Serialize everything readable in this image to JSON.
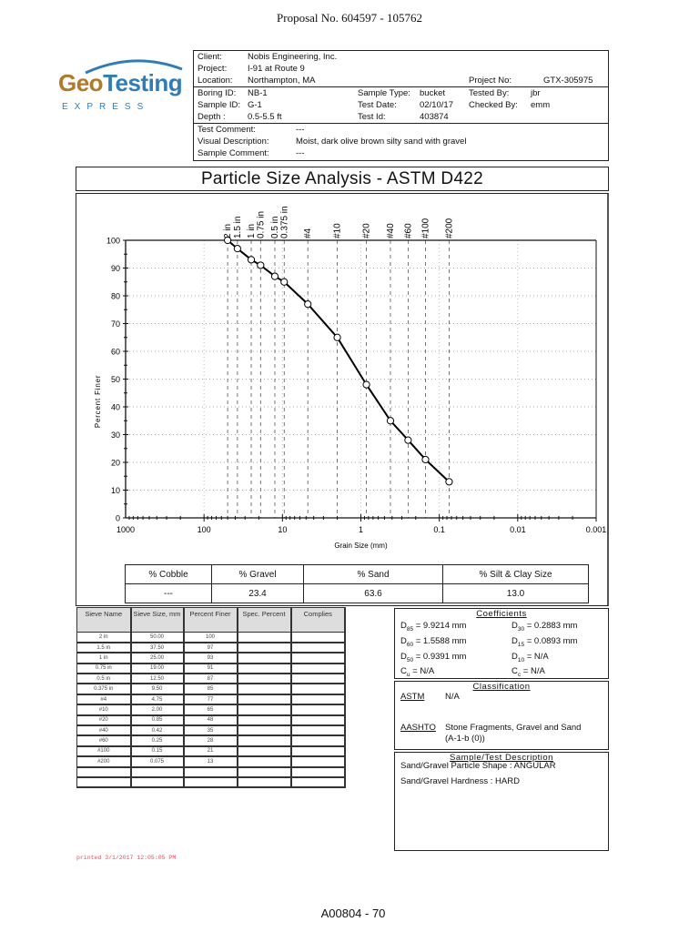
{
  "page": {
    "proposal": "Proposal No. 604597 - 105762",
    "page_id": "A00804 - 70",
    "printed": "printed 3/1/2017 12:05:05 PM"
  },
  "logo": {
    "geo": "Geo",
    "testing": "Testing",
    "express": "EXPRESS",
    "colors": {
      "geo": "#b07a2a",
      "testing": "#2f7db8"
    }
  },
  "header": {
    "client_label": "Client:",
    "client": "Nobis Engineering, Inc.",
    "project_label": "Project:",
    "project": "I-91 at Route 9",
    "location_label": "Location:",
    "location": "Northampton, MA",
    "project_no_label": "Project No:",
    "project_no": "GTX-305975",
    "boring_label": "Boring ID:",
    "boring": "NB-1",
    "sample_type_label": "Sample Type:",
    "sample_type": "bucket",
    "tested_by_label": "Tested By:",
    "tested_by": "jbr",
    "sample_id_label": "Sample ID:",
    "sample_id": "G-1",
    "test_date_label": "Test Date:",
    "test_date": "02/10/17",
    "checked_by_label": "Checked By:",
    "checked_by": "emm",
    "depth_label": "Depth :",
    "depth": "0.5-5.5 ft",
    "test_id_label": "Test Id:",
    "test_id": "403874",
    "test_comment_label": "Test Comment:",
    "test_comment": "---",
    "visual_desc_label": "Visual Description:",
    "visual_desc": "Moist, dark olive brown silty sand with gravel",
    "sample_comment_label": "Sample Comment:",
    "sample_comment": "---"
  },
  "title": "Particle Size Analysis - ASTM D422",
  "chart_data": {
    "type": "line",
    "title": "Particle Size Analysis - ASTM D422",
    "xlabel": "Grain Size (mm)",
    "ylabel": "Percent Finer",
    "x_scale": "log",
    "x_reversed": true,
    "xlim": [
      1000,
      0.001
    ],
    "ylim": [
      0,
      100
    ],
    "x_ticks": [
      "1000",
      "100",
      "10",
      "1",
      "0.1",
      "0.01",
      "0.001"
    ],
    "y_ticks": [
      "0",
      "10",
      "20",
      "30",
      "40",
      "50",
      "60",
      "70",
      "80",
      "90",
      "100"
    ],
    "grid": true,
    "sieve_labels": [
      "2 in",
      "1.5 in",
      "1 in",
      "0.75 in",
      "0.5 in",
      "0.375 in",
      "#4",
      "#10",
      "#20",
      "#40",
      "#60",
      "#100",
      "#200"
    ],
    "x": [
      50.0,
      37.5,
      25.0,
      19.0,
      12.5,
      9.5,
      4.75,
      2.0,
      0.85,
      0.42,
      0.25,
      0.15,
      0.075
    ],
    "series": [
      {
        "name": "Percent Finer",
        "values": [
          100,
          97,
          93,
          91,
          87,
          85,
          77,
          65,
          48,
          35,
          28,
          21,
          13
        ]
      }
    ]
  },
  "summary": {
    "headers": [
      "% Cobble",
      "% Gravel",
      "% Sand",
      "% Silt & Clay Size"
    ],
    "values": [
      "---",
      "23.4",
      "63.6",
      "13.0"
    ]
  },
  "sieve_table": {
    "headers": [
      "Sieve Name",
      "Sieve Size, mm",
      "Percent Finer",
      "Spec. Percent",
      "Complies"
    ],
    "rows": [
      [
        "2 in",
        "50.00",
        "100",
        "",
        ""
      ],
      [
        "1.5 in",
        "37.50",
        "97",
        "",
        ""
      ],
      [
        "1 in",
        "25.00",
        "93",
        "",
        ""
      ],
      [
        "0.75 in",
        "19.00",
        "91",
        "",
        ""
      ],
      [
        "0.5 in",
        "12.50",
        "87",
        "",
        ""
      ],
      [
        "0.375 in",
        "9.50",
        "85",
        "",
        ""
      ],
      [
        "#4",
        "4.75",
        "77",
        "",
        ""
      ],
      [
        "#10",
        "2.00",
        "65",
        "",
        ""
      ],
      [
        "#20",
        "0.85",
        "48",
        "",
        ""
      ],
      [
        "#40",
        "0.42",
        "35",
        "",
        ""
      ],
      [
        "#60",
        "0.25",
        "28",
        "",
        ""
      ],
      [
        "#100",
        "0.15",
        "21",
        "",
        ""
      ],
      [
        "#200",
        "0.075",
        "13",
        "",
        ""
      ],
      [
        "",
        "",
        "",
        "",
        ""
      ],
      [
        "",
        "",
        "",
        "",
        ""
      ]
    ]
  },
  "coefficients": {
    "title": "Coefficients",
    "d85": "= 9.9214 mm",
    "d30": "= 0.2883 mm",
    "d60": "= 1.5588 mm",
    "d15": "= 0.0893 mm",
    "d50": "= 0.9391 mm",
    "d10": "= N/A",
    "cu": " = N/A",
    "cc": " = N/A"
  },
  "classification": {
    "title": "Classification",
    "astm_label": "ASTM",
    "astm": "N/A",
    "aashto_label": "AASHTO",
    "aashto_line1": "Stone Fragments, Gravel and Sand",
    "aashto_line2": "(A-1-b (0))"
  },
  "sample_description": {
    "title": "Sample/Test Description",
    "shape": "Sand/Gravel Particle Shape : ANGULAR",
    "hardness": "Sand/Gravel Hardness : HARD"
  }
}
